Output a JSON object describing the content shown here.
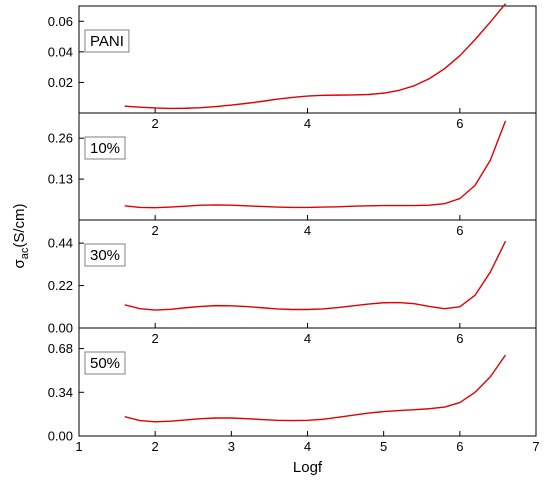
{
  "chart_data": [
    {
      "type": "line",
      "label": "PANI",
      "xlim": [
        1,
        7
      ],
      "ylim": [
        0,
        0.07
      ],
      "yticks": [
        0.02,
        0.04,
        0.06
      ],
      "ytick_labels": [
        "0.02",
        "0.04",
        "0.06"
      ],
      "xticks": [
        2,
        4,
        6
      ],
      "xtick_labels": [
        "2",
        "4",
        "6"
      ],
      "series": [
        {
          "color": "#e00000",
          "x": [
            1.6,
            1.8,
            2.0,
            2.2,
            2.4,
            2.6,
            2.8,
            3.0,
            3.2,
            3.4,
            3.6,
            3.8,
            4.0,
            4.2,
            4.4,
            4.6,
            4.8,
            5.0,
            5.2,
            5.4,
            5.6,
            5.8,
            6.0,
            6.2,
            6.4,
            6.6
          ],
          "y": [
            0.0045,
            0.0038,
            0.0033,
            0.003,
            0.0031,
            0.0035,
            0.0042,
            0.0052,
            0.0063,
            0.0076,
            0.009,
            0.0102,
            0.0111,
            0.0116,
            0.0117,
            0.0118,
            0.0121,
            0.013,
            0.0148,
            0.0178,
            0.0225,
            0.029,
            0.0375,
            0.048,
            0.0595,
            0.0715
          ]
        }
      ]
    },
    {
      "type": "line",
      "label": "10%",
      "xlim": [
        1,
        7
      ],
      "ylim": [
        0,
        0.34
      ],
      "yticks": [
        0.13,
        0.26
      ],
      "ytick_labels": [
        "0.13",
        "0.26"
      ],
      "xticks": [
        2,
        4,
        6
      ],
      "xtick_labels": [
        "2",
        "4",
        "6"
      ],
      "series": [
        {
          "color": "#e00000",
          "x": [
            1.6,
            1.8,
            2.0,
            2.2,
            2.4,
            2.6,
            2.8,
            3.0,
            3.2,
            3.4,
            3.6,
            3.8,
            4.0,
            4.2,
            4.4,
            4.6,
            4.8,
            5.0,
            5.2,
            5.4,
            5.6,
            5.8,
            6.0,
            6.2,
            6.4,
            6.6
          ],
          "y": [
            0.045,
            0.04,
            0.039,
            0.041,
            0.044,
            0.047,
            0.048,
            0.047,
            0.045,
            0.043,
            0.041,
            0.04,
            0.04,
            0.041,
            0.042,
            0.044,
            0.045,
            0.046,
            0.046,
            0.046,
            0.047,
            0.052,
            0.068,
            0.11,
            0.19,
            0.315
          ]
        }
      ]
    },
    {
      "type": "line",
      "label": "30%",
      "xlim": [
        1,
        7
      ],
      "ylim": [
        0,
        0.56
      ],
      "yticks": [
        0.0,
        0.22,
        0.44
      ],
      "ytick_labels": [
        "0.00",
        "0.22",
        "0.44"
      ],
      "xticks": [
        2,
        4,
        6
      ],
      "xtick_labels": [
        "2",
        "4",
        "6"
      ],
      "series": [
        {
          "color": "#e00000",
          "x": [
            1.6,
            1.8,
            2.0,
            2.2,
            2.4,
            2.6,
            2.8,
            3.0,
            3.2,
            3.4,
            3.6,
            3.8,
            4.0,
            4.2,
            4.4,
            4.6,
            4.8,
            5.0,
            5.2,
            5.4,
            5.6,
            5.8,
            6.0,
            6.2,
            6.4,
            6.6
          ],
          "y": [
            0.12,
            0.1,
            0.093,
            0.097,
            0.105,
            0.112,
            0.116,
            0.115,
            0.111,
            0.105,
            0.099,
            0.096,
            0.096,
            0.099,
            0.106,
            0.115,
            0.124,
            0.131,
            0.132,
            0.126,
            0.112,
            0.1,
            0.11,
            0.17,
            0.29,
            0.45
          ]
        }
      ]
    },
    {
      "type": "line",
      "label": "50%",
      "xlim": [
        1,
        7
      ],
      "ylim": [
        0,
        0.84
      ],
      "yticks": [
        0.0,
        0.34,
        0.68
      ],
      "ytick_labels": [
        "0.00",
        "0.34",
        "0.68"
      ],
      "xticks": [
        1,
        2,
        3,
        4,
        5,
        6,
        7
      ],
      "xtick_labels": [
        "1",
        "2",
        "3",
        "4",
        "5",
        "6",
        "7"
      ],
      "xlabel": "Logf",
      "series": [
        {
          "color": "#e00000",
          "x": [
            1.6,
            1.8,
            2.0,
            2.2,
            2.4,
            2.6,
            2.8,
            3.0,
            3.2,
            3.4,
            3.6,
            3.8,
            4.0,
            4.2,
            4.4,
            4.6,
            4.8,
            5.0,
            5.2,
            5.4,
            5.6,
            5.8,
            6.0,
            6.2,
            6.4,
            6.6
          ],
          "y": [
            0.15,
            0.12,
            0.11,
            0.115,
            0.125,
            0.135,
            0.14,
            0.14,
            0.135,
            0.128,
            0.122,
            0.12,
            0.122,
            0.13,
            0.145,
            0.162,
            0.178,
            0.19,
            0.198,
            0.205,
            0.212,
            0.225,
            0.26,
            0.34,
            0.46,
            0.63
          ]
        }
      ]
    }
  ],
  "ylabel": {
    "symbol": "σ",
    "subscript": "ac",
    "unit": "(S/cm)"
  }
}
